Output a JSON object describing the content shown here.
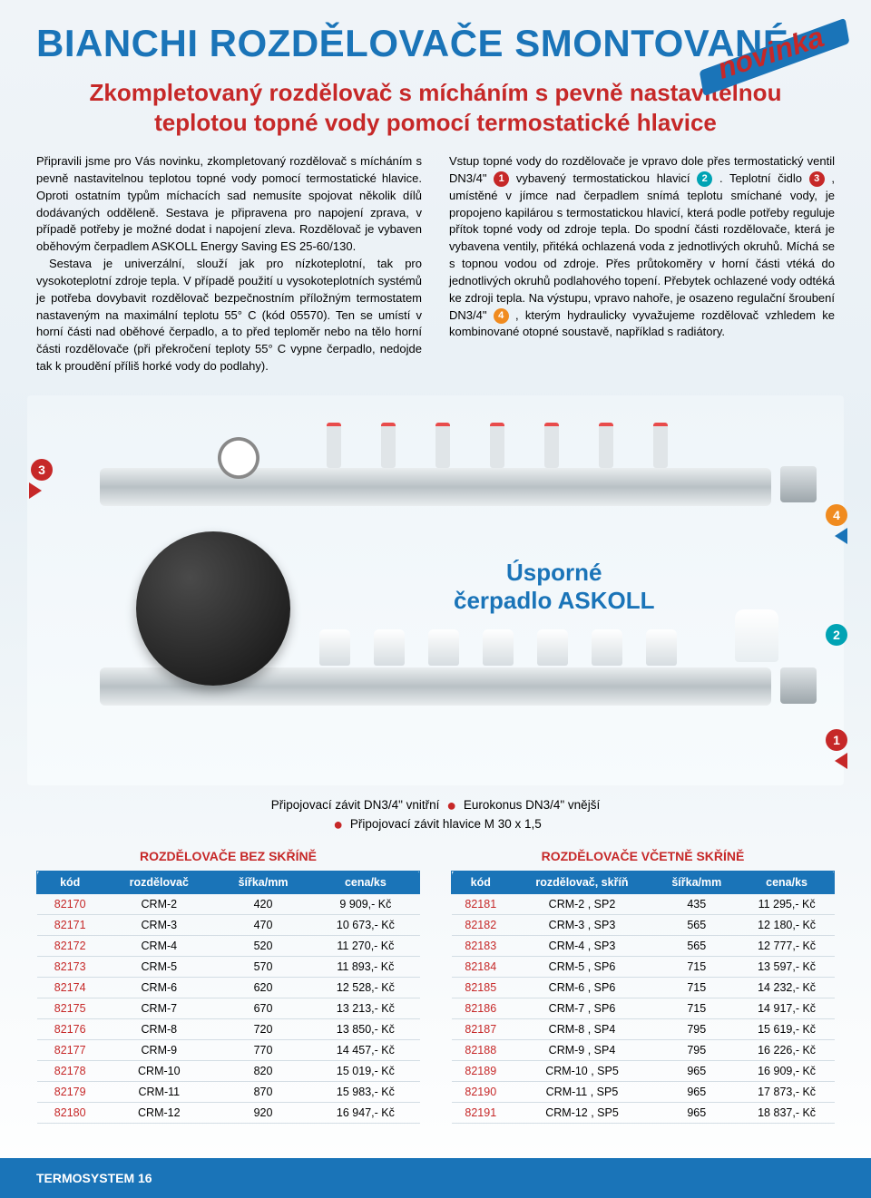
{
  "colors": {
    "accent": "#c62828",
    "brand": "#1a74b8",
    "badge1": "#c62828",
    "badge2": "#00a3b4",
    "badge3": "#c62828",
    "badge4": "#f08b1f"
  },
  "title": "BIANCHI ROZDĚLOVAČE SMONTOVANÉ",
  "novinka": "novinka",
  "subtitle": "Zkompletovaný rozdělovač s mícháním s pevně nastavitelnou teplotou topné vody pomocí termostatické hlavice",
  "left_para": "Připravili jsme pro Vás novinku, zkompletovaný rozdělovač s mícháním s pevně nastavitelnou teplotou topné vody pomocí termostatické hlavice. Oproti ostatním typům míchacích sad nemusíte spojovat několik dílů dodávaných odděleně. Sestava je připravena pro napojení zprava, v případě potřeby je možné dodat i napojení zleva. Rozdělovač je vybaven oběhovým čerpadlem ASKOLL Energy Saving ES 25-60/130.",
  "left_para2": "Sestava je univerzální, slouží jak pro nízkoteplotní, tak pro vysokoteplotní zdroje tepla. V případě použití u vysokoteplotních systémů je potřeba dovybavit rozdělovač bezpečnostním příložným termostatem nastaveným na maximální teplotu 55° C (kód 05570). Ten se umístí v horní části nad oběhové čerpadlo, a to před teploměr nebo na tělo horní části rozdělovače (při překročení teploty 55° C vypne čerpadlo, nedojde tak k proudění příliš horké vody do podlahy).",
  "right_pre1": "Vstup topné vody do rozdělovače je vpravo dole přes termostatický ventil DN3/4\" ",
  "right_mid1": " vybavený termostatickou hlavicí ",
  "right_mid2": ". Teplotní čidlo ",
  "right_mid3": ", umístěné v jímce nad čerpadlem snímá teplotu smíchané vody, je propojeno kapilárou s termostatickou hlavicí, která podle potřeby reguluje přítok topné vody od zdroje tepla. Do spodní části rozdělovače, která je vybavena ventily, přitéká ochlazená voda z jednotlivých okruhů. Míchá se s topnou vodou od zdroje. Přes průtokoměry v horní části vtéká do jednotlivých okruhů podlahového topení. Přebytek ochlazené vody odtéká ke zdroji tepla. Na výstupu, vpravo nahoře, je osazeno regulační šroubení DN3/4\" ",
  "right_mid4": ", kterým hydraulicky vyvažujeme rozdělovač vzhledem ke kombinované otopné soustavě, například s radiátory.",
  "hero_label1": "Úsporné",
  "hero_label2": "čerpadlo ASKOLL",
  "badge_nums": {
    "b1": "1",
    "b2": "2",
    "b3": "3",
    "b4": "4"
  },
  "specs1": "Připojovací závit DN3/4\" vnitřní",
  "specs2": "Eurokonus DN3/4\" vnější",
  "specs3": "Připojovací závit hlavice M 30 x 1,5",
  "t1": {
    "title": "ROZDĚLOVAČE BEZ SKŘÍNĚ",
    "cols": [
      "kód",
      "rozdělovač",
      "šířka/mm",
      "cena/ks"
    ],
    "rows": [
      [
        "82170",
        "CRM-2",
        "420",
        "9 909,- Kč"
      ],
      [
        "82171",
        "CRM-3",
        "470",
        "10 673,- Kč"
      ],
      [
        "82172",
        "CRM-4",
        "520",
        "11 270,- Kč"
      ],
      [
        "82173",
        "CRM-5",
        "570",
        "11 893,- Kč"
      ],
      [
        "82174",
        "CRM-6",
        "620",
        "12 528,- Kč"
      ],
      [
        "82175",
        "CRM-7",
        "670",
        "13 213,- Kč"
      ],
      [
        "82176",
        "CRM-8",
        "720",
        "13 850,- Kč"
      ],
      [
        "82177",
        "CRM-9",
        "770",
        "14 457,- Kč"
      ],
      [
        "82178",
        "CRM-10",
        "820",
        "15 019,- Kč"
      ],
      [
        "82179",
        "CRM-11",
        "870",
        "15 983,- Kč"
      ],
      [
        "82180",
        "CRM-12",
        "920",
        "16 947,- Kč"
      ]
    ]
  },
  "t2": {
    "title": "ROZDĚLOVAČE VČETNĚ SKŘÍNĚ",
    "cols": [
      "kód",
      "rozdělovač, skříň",
      "šířka/mm",
      "cena/ks"
    ],
    "rows": [
      [
        "82181",
        "CRM-2 , SP2",
        "435",
        "11 295,- Kč"
      ],
      [
        "82182",
        "CRM-3 , SP3",
        "565",
        "12 180,- Kč"
      ],
      [
        "82183",
        "CRM-4 , SP3",
        "565",
        "12 777,- Kč"
      ],
      [
        "82184",
        "CRM-5 , SP6",
        "715",
        "13 597,- Kč"
      ],
      [
        "82185",
        "CRM-6 , SP6",
        "715",
        "14 232,- Kč"
      ],
      [
        "82186",
        "CRM-7 , SP6",
        "715",
        "14 917,- Kč"
      ],
      [
        "82187",
        "CRM-8 , SP4",
        "795",
        "15 619,- Kč"
      ],
      [
        "82188",
        "CRM-9 , SP4",
        "795",
        "16 226,- Kč"
      ],
      [
        "82189",
        "CRM-10 , SP5",
        "965",
        "16 909,- Kč"
      ],
      [
        "82190",
        "CRM-11 , SP5",
        "965",
        "17 873,- Kč"
      ],
      [
        "82191",
        "CRM-12 , SP5",
        "965",
        "18 837,- Kč"
      ]
    ]
  },
  "footer": "TERMOSYSTEM 16"
}
